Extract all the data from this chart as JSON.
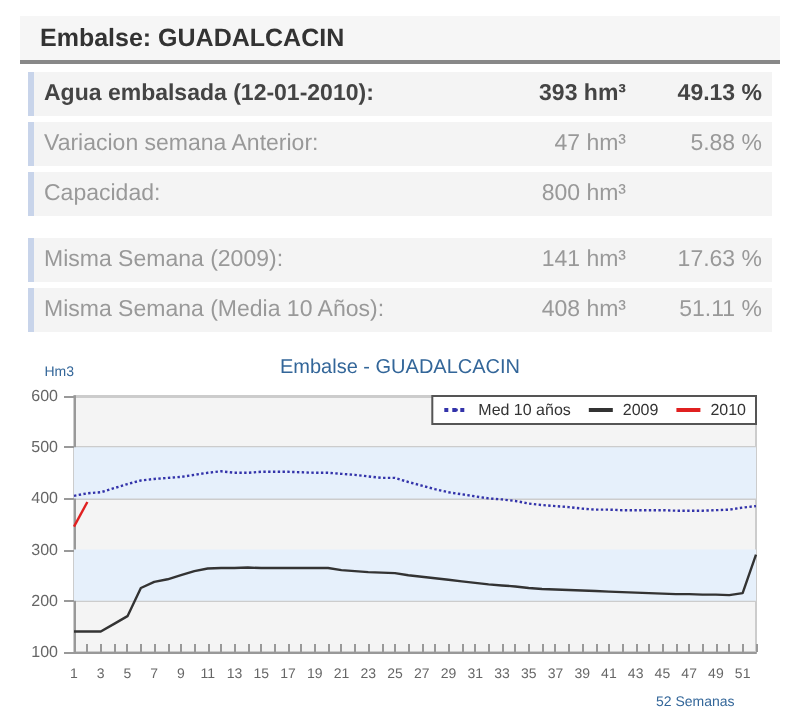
{
  "chart_data": {
    "type": "line",
    "title": "Embalse - GUADALCACIN",
    "xlabel": "52 Semanas",
    "ylabel": "Hm3",
    "annotations": [
      "Embalse: GUADALCACIN",
      "Agua embalsada (12-01-2010):",
      "393 hm³",
      "49.13 %",
      "Variacion semana Anterior:",
      "47 hm³",
      "5.88 %",
      "Capacidad:",
      "800 hm³",
      "Misma Semana (2009):",
      "141 hm³",
      "17.63 %",
      "Misma Semana (Media 10 Años):",
      "408 hm³",
      "51.11 %"
    ],
    "x": [
      1,
      2,
      3,
      4,
      5,
      6,
      7,
      8,
      9,
      10,
      11,
      12,
      13,
      14,
      15,
      16,
      17,
      18,
      19,
      20,
      21,
      22,
      23,
      24,
      25,
      26,
      27,
      28,
      29,
      30,
      31,
      32,
      33,
      34,
      35,
      36,
      37,
      38,
      39,
      40,
      41,
      42,
      43,
      44,
      45,
      46,
      47,
      48,
      49,
      50,
      51,
      52
    ],
    "xlim": [
      1,
      52
    ],
    "xticks": [
      1,
      3,
      5,
      7,
      9,
      11,
      13,
      15,
      17,
      19,
      21,
      23,
      25,
      27,
      29,
      31,
      33,
      35,
      37,
      39,
      41,
      43,
      45,
      47,
      49,
      51
    ],
    "series": [
      {
        "name": "Med 10 años",
        "color": "#3333aa",
        "line_style": "dotted",
        "values": [
          405,
          410,
          412,
          420,
          428,
          435,
          438,
          440,
          442,
          446,
          450,
          453,
          450,
          450,
          452,
          452,
          452,
          451,
          450,
          450,
          448,
          446,
          443,
          440,
          440,
          432,
          425,
          418,
          412,
          408,
          404,
          400,
          398,
          395,
          390,
          387,
          385,
          383,
          380,
          378,
          378,
          377,
          377,
          377,
          377,
          376,
          376,
          376,
          377,
          378,
          382,
          385
        ]
      },
      {
        "name": "2009",
        "color": "#333333",
        "line_style": "solid",
        "values": [
          140,
          140,
          140,
          155,
          170,
          225,
          237,
          242,
          250,
          258,
          263,
          264,
          264,
          265,
          264,
          264,
          264,
          264,
          264,
          264,
          260,
          258,
          256,
          255,
          254,
          250,
          247,
          244,
          241,
          238,
          235,
          232,
          230,
          228,
          225,
          223,
          222,
          221,
          220,
          219,
          218,
          217,
          216,
          215,
          214,
          213,
          213,
          212,
          212,
          211,
          215,
          290
        ]
      },
      {
        "name": "2010",
        "color": "#e02020",
        "line_style": "solid",
        "values": [
          345,
          393,
          null,
          null,
          null,
          null,
          null,
          null,
          null,
          null,
          null,
          null,
          null,
          null,
          null,
          null,
          null,
          null,
          null,
          null,
          null,
          null,
          null,
          null,
          null,
          null,
          null,
          null,
          null,
          null,
          null,
          null,
          null,
          null,
          null,
          null,
          null,
          null,
          null,
          null,
          null,
          null,
          null,
          null,
          null,
          null,
          null,
          null,
          null,
          null,
          null,
          null
        ]
      }
    ],
    "ylim": [
      100,
      600
    ],
    "yticks": [
      100,
      200,
      300,
      400,
      500,
      600
    ],
    "grid": "y",
    "legend": "top right",
    "marker": "none",
    "bands": [
      {
        "axis": "y",
        "from": 200,
        "to": 300,
        "color": "#e6f0fb"
      },
      {
        "axis": "y",
        "from": 400,
        "to": 500,
        "color": "#e6f0fb"
      }
    ]
  }
}
